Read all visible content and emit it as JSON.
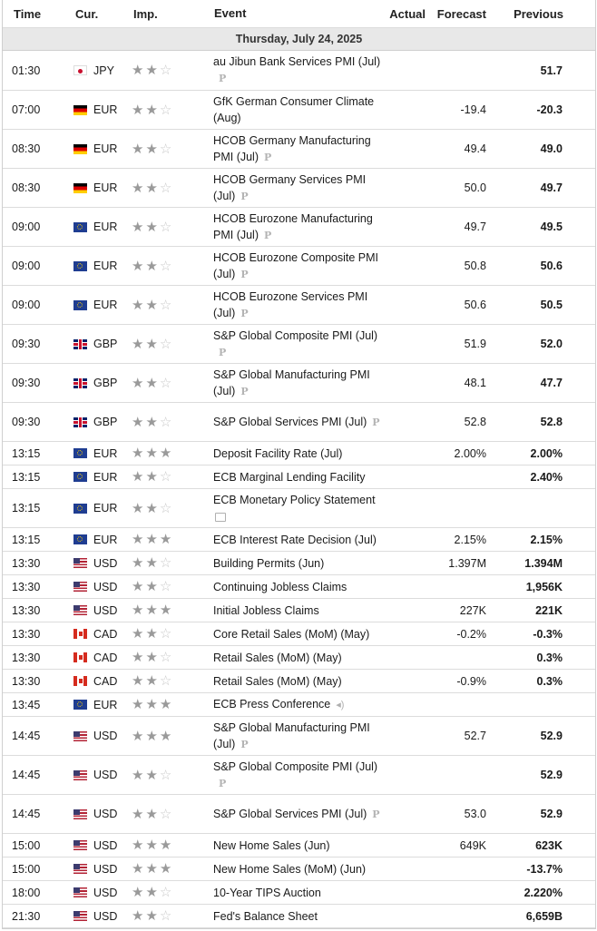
{
  "header": {
    "time": "Time",
    "currency": "Cur.",
    "importance": "Imp.",
    "event": "Event",
    "actual": "Actual",
    "forecast": "Forecast",
    "previous": "Previous"
  },
  "date_label": "Thursday, July 24, 2025",
  "colors": {
    "date_bg": "#e8e8e8",
    "star_on": "#9a9a9a",
    "star_off": "#c8c8c8",
    "border": "#dcdcdc"
  },
  "rows": [
    {
      "time": "01:30",
      "currency": "JPY",
      "flag": "jpy",
      "stars": 2,
      "event": "au Jibun Bank Services PMI (Jul)",
      "tag": "preliminary",
      "actual": "",
      "forecast": "",
      "previous": "51.7"
    },
    {
      "time": "07:00",
      "currency": "EUR",
      "flag": "eur-de",
      "stars": 2,
      "event": "GfK German Consumer Climate (Aug)",
      "tag": "",
      "actual": "",
      "forecast": "-19.4",
      "previous": "-20.3"
    },
    {
      "time": "08:30",
      "currency": "EUR",
      "flag": "eur-de",
      "stars": 2,
      "event": "HCOB Germany Manufacturing PMI (Jul)",
      "tag": "preliminary",
      "actual": "",
      "forecast": "49.4",
      "previous": "49.0"
    },
    {
      "time": "08:30",
      "currency": "EUR",
      "flag": "eur-de",
      "stars": 2,
      "event": "HCOB Germany Services PMI (Jul)",
      "tag": "preliminary",
      "actual": "",
      "forecast": "50.0",
      "previous": "49.7"
    },
    {
      "time": "09:00",
      "currency": "EUR",
      "flag": "eur",
      "stars": 2,
      "event": "HCOB Eurozone Manufacturing PMI (Jul)",
      "tag": "preliminary",
      "actual": "",
      "forecast": "49.7",
      "previous": "49.5"
    },
    {
      "time": "09:00",
      "currency": "EUR",
      "flag": "eur",
      "stars": 2,
      "event": "HCOB Eurozone Composite PMI (Jul)",
      "tag": "preliminary",
      "actual": "",
      "forecast": "50.8",
      "previous": "50.6"
    },
    {
      "time": "09:00",
      "currency": "EUR",
      "flag": "eur",
      "stars": 2,
      "event": "HCOB Eurozone Services PMI (Jul)",
      "tag": "preliminary",
      "actual": "",
      "forecast": "50.6",
      "previous": "50.5"
    },
    {
      "time": "09:30",
      "currency": "GBP",
      "flag": "gbp",
      "stars": 2,
      "event": "S&P Global Composite PMI (Jul)",
      "tag": "preliminary",
      "actual": "",
      "forecast": "51.9",
      "previous": "52.0"
    },
    {
      "time": "09:30",
      "currency": "GBP",
      "flag": "gbp",
      "stars": 2,
      "event": "S&P Global Manufacturing PMI (Jul)",
      "tag": "preliminary",
      "actual": "",
      "forecast": "48.1",
      "previous": "47.7"
    },
    {
      "time": "09:30",
      "currency": "GBP",
      "flag": "gbp",
      "stars": 2,
      "event": "S&P Global Services PMI (Jul)",
      "tag": "preliminary",
      "actual": "",
      "forecast": "52.8",
      "previous": "52.8"
    },
    {
      "time": "13:15",
      "currency": "EUR",
      "flag": "eur",
      "stars": 3,
      "event": "Deposit Facility Rate (Jul)",
      "tag": "",
      "actual": "",
      "forecast": "2.00%",
      "previous": "2.00%"
    },
    {
      "time": "13:15",
      "currency": "EUR",
      "flag": "eur",
      "stars": 2,
      "event": "ECB Marginal Lending Facility",
      "tag": "",
      "actual": "",
      "forecast": "",
      "previous": "2.40%"
    },
    {
      "time": "13:15",
      "currency": "EUR",
      "flag": "eur",
      "stars": 2,
      "event": "ECB Monetary Policy Statement",
      "tag": "document",
      "actual": "",
      "forecast": "",
      "previous": ""
    },
    {
      "time": "13:15",
      "currency": "EUR",
      "flag": "eur",
      "stars": 3,
      "event": "ECB Interest Rate Decision (Jul)",
      "tag": "",
      "actual": "",
      "forecast": "2.15%",
      "previous": "2.15%"
    },
    {
      "time": "13:30",
      "currency": "USD",
      "flag": "usd",
      "stars": 2,
      "event": "Building Permits (Jun)",
      "tag": "",
      "actual": "",
      "forecast": "1.397M",
      "previous": "1.394M"
    },
    {
      "time": "13:30",
      "currency": "USD",
      "flag": "usd",
      "stars": 2,
      "event": "Continuing Jobless Claims",
      "tag": "",
      "actual": "",
      "forecast": "",
      "previous": "1,956K"
    },
    {
      "time": "13:30",
      "currency": "USD",
      "flag": "usd",
      "stars": 3,
      "event": "Initial Jobless Claims",
      "tag": "",
      "actual": "",
      "forecast": "227K",
      "previous": "221K"
    },
    {
      "time": "13:30",
      "currency": "CAD",
      "flag": "cad",
      "stars": 2,
      "event": "Core Retail Sales (MoM) (May)",
      "tag": "",
      "actual": "",
      "forecast": "-0.2%",
      "previous": "-0.3%"
    },
    {
      "time": "13:30",
      "currency": "CAD",
      "flag": "cad",
      "stars": 2,
      "event": "Retail Sales (MoM) (May)",
      "tag": "",
      "actual": "",
      "forecast": "",
      "previous": "0.3%"
    },
    {
      "time": "13:30",
      "currency": "CAD",
      "flag": "cad",
      "stars": 2,
      "event": "Retail Sales (MoM) (May)",
      "tag": "",
      "actual": "",
      "forecast": "-0.9%",
      "previous": "0.3%"
    },
    {
      "time": "13:45",
      "currency": "EUR",
      "flag": "eur",
      "stars": 3,
      "event": "ECB Press Conference",
      "tag": "speaker",
      "actual": "",
      "forecast": "",
      "previous": ""
    },
    {
      "time": "14:45",
      "currency": "USD",
      "flag": "usd",
      "stars": 3,
      "event": "S&P Global Manufacturing PMI (Jul)",
      "tag": "preliminary",
      "actual": "",
      "forecast": "52.7",
      "previous": "52.9"
    },
    {
      "time": "14:45",
      "currency": "USD",
      "flag": "usd",
      "stars": 2,
      "event": "S&P Global Composite PMI (Jul)",
      "tag": "preliminary",
      "actual": "",
      "forecast": "",
      "previous": "52.9"
    },
    {
      "time": "14:45",
      "currency": "USD",
      "flag": "usd",
      "stars": 2,
      "event": "S&P Global Services PMI (Jul)",
      "tag": "preliminary",
      "actual": "",
      "forecast": "53.0",
      "previous": "52.9"
    },
    {
      "time": "15:00",
      "currency": "USD",
      "flag": "usd",
      "stars": 3,
      "event": "New Home Sales (Jun)",
      "tag": "",
      "actual": "",
      "forecast": "649K",
      "previous": "623K"
    },
    {
      "time": "15:00",
      "currency": "USD",
      "flag": "usd",
      "stars": 3,
      "event": "New Home Sales (MoM) (Jun)",
      "tag": "",
      "actual": "",
      "forecast": "",
      "previous": "-13.7%"
    },
    {
      "time": "18:00",
      "currency": "USD",
      "flag": "usd",
      "stars": 2,
      "event": "10-Year TIPS Auction",
      "tag": "",
      "actual": "",
      "forecast": "",
      "previous": "2.220%"
    },
    {
      "time": "21:30",
      "currency": "USD",
      "flag": "usd",
      "stars": 2,
      "event": "Fed's Balance Sheet",
      "tag": "",
      "actual": "",
      "forecast": "",
      "previous": "6,659B"
    }
  ],
  "preliminary_mark": "P"
}
